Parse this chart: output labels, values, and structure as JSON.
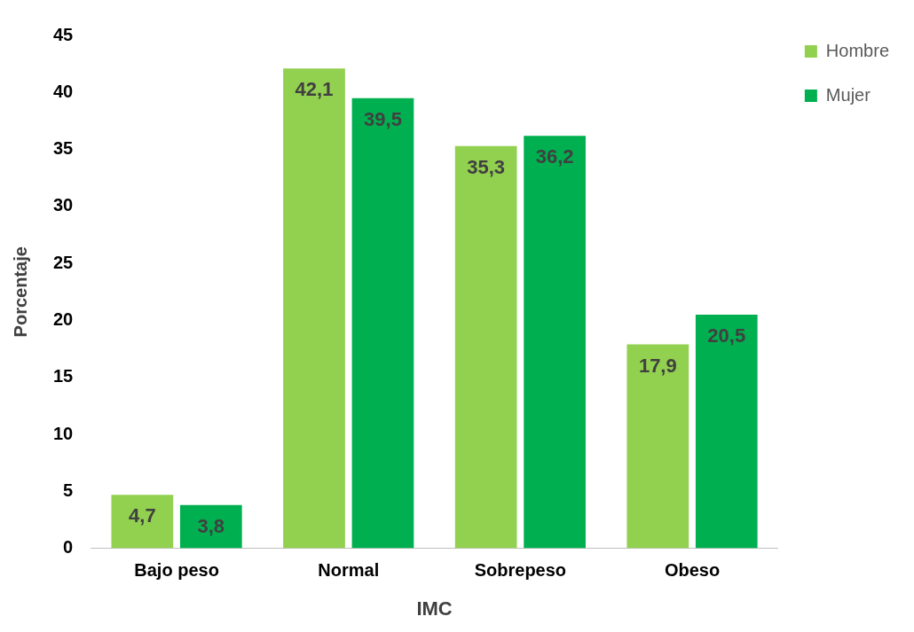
{
  "chart_data": {
    "type": "bar",
    "xlabel": "IMC",
    "ylabel": "Porcentaje",
    "categories": [
      "Bajo peso",
      "Normal",
      "Sobrepeso",
      "Obeso"
    ],
    "series": [
      {
        "name": "Hombre",
        "color": "#92d050",
        "values": [
          4.7,
          42.1,
          35.3,
          17.9
        ],
        "value_labels": [
          "4,7",
          "42,1",
          "35,3",
          "17,9"
        ]
      },
      {
        "name": "Mujer",
        "color": "#00b050",
        "values": [
          3.8,
          39.5,
          36.2,
          20.5
        ],
        "value_labels": [
          "3,8",
          "39,5",
          "36,2",
          "20,5"
        ]
      }
    ],
    "ylim": [
      0,
      45
    ],
    "yticks": [
      0,
      5,
      10,
      15,
      20,
      25,
      30,
      35,
      40,
      45
    ],
    "grid": false,
    "legend": "top right"
  }
}
